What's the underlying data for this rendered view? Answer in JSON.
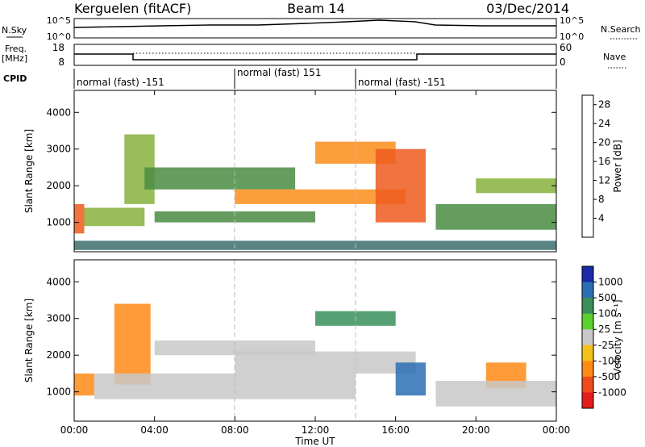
{
  "header": {
    "station": "Kerguelen (fitACF)",
    "beam": "Beam 14",
    "date": "03/Dec/2014"
  },
  "strips": {
    "nsky_label": "N.Sky",
    "nsky_ticks": [
      "10^5",
      "10^0"
    ],
    "nsearch_label": "N.Search",
    "nsearch_ticks": [
      "10^5",
      "10^0"
    ],
    "freq_label": "Freq.",
    "freq_unit": "[MHz]",
    "freq_ticks": [
      "18",
      "8"
    ],
    "nave_label": "Nave",
    "nave_ticks": [
      "60",
      "0"
    ],
    "cpid_label": "CPID",
    "cpid_segments": [
      {
        "label": "normal (fast) -151",
        "start_h": 0,
        "end_h": 8
      },
      {
        "label": "normal (fast) 151",
        "start_h": 8,
        "end_h": 14
      },
      {
        "label": "normal (fast) -151",
        "start_h": 14,
        "end_h": 24
      }
    ]
  },
  "colors": {
    "power_scale": [
      "#0000ff",
      "#2b46a6",
      "#3d6f6e",
      "#4a8c42",
      "#86b23c",
      "#f4c01b",
      "#fb8d1a",
      "#ef5a1e",
      "#e32525"
    ],
    "velocity_scale": [
      "#1b2aa8",
      "#2d6fb4",
      "#3a8f5a",
      "#5bd12d",
      "#c8c8c8",
      "#f2c21a",
      "#ff8a16",
      "#ef4b1c",
      "#e41c1c"
    ],
    "ground_scatter": "#c8c8c8"
  },
  "chart_data": [
    {
      "type": "heatmap",
      "panel": "power",
      "xlabel": "",
      "ylabel": "Slant Range [km]",
      "xlim": [
        0,
        24
      ],
      "ylim": [
        200,
        4600
      ],
      "yticks": [
        "1000",
        "2000",
        "3000",
        "4000"
      ],
      "colorbar_label": "Power [dB]",
      "colorbar_ticks": [
        "4",
        "8",
        "12",
        "16",
        "20",
        "24",
        "28"
      ],
      "colorbar_range": [
        0,
        30
      ],
      "bands": [
        {
          "start_h": 0.0,
          "end_h": 0.5,
          "range_lo_km": 700,
          "range_hi_km": 1500,
          "value": 26
        },
        {
          "start_h": 0.5,
          "end_h": 3.5,
          "range_lo_km": 900,
          "range_hi_km": 1400,
          "value": 14
        },
        {
          "start_h": 2.5,
          "end_h": 4.0,
          "range_lo_km": 1500,
          "range_hi_km": 3400,
          "value": 14
        },
        {
          "start_h": 4.0,
          "end_h": 12.0,
          "range_lo_km": 1000,
          "range_hi_km": 1300,
          "value": 12
        },
        {
          "start_h": 3.5,
          "end_h": 11.0,
          "range_lo_km": 1900,
          "range_hi_km": 2500,
          "value": 10
        },
        {
          "start_h": 8.0,
          "end_h": 16.5,
          "range_lo_km": 1500,
          "range_hi_km": 1900,
          "value": 22
        },
        {
          "start_h": 12.0,
          "end_h": 16.0,
          "range_lo_km": 2600,
          "range_hi_km": 3200,
          "value": 20
        },
        {
          "start_h": 15.0,
          "end_h": 17.5,
          "range_lo_km": 1000,
          "range_hi_km": 3000,
          "value": 24
        },
        {
          "start_h": 18.0,
          "end_h": 24.0,
          "range_lo_km": 800,
          "range_hi_km": 1500,
          "value": 12
        },
        {
          "start_h": 20.0,
          "end_h": 24.0,
          "range_lo_km": 1800,
          "range_hi_km": 2200,
          "value": 16
        },
        {
          "start_h": 0.0,
          "end_h": 24.0,
          "range_lo_km": 250,
          "range_hi_km": 500,
          "value": 8
        }
      ]
    },
    {
      "type": "heatmap",
      "panel": "velocity",
      "xlabel": "Time UT",
      "ylabel": "Slant Range [km]",
      "xlim": [
        0,
        24
      ],
      "ylim": [
        200,
        4600
      ],
      "yticks": [
        "1000",
        "2000",
        "3000",
        "4000"
      ],
      "xticks": [
        "00:00",
        "04:00",
        "08:00",
        "12:00",
        "16:00",
        "20:00",
        "00:00"
      ],
      "colorbar_label": "Velocity [m s⁻¹]",
      "colorbar_ticks": [
        "1000",
        "500",
        "100",
        "25",
        "-25",
        "-100",
        "-500",
        "-1000"
      ],
      "bands": [
        {
          "start_h": 0.0,
          "end_h": 1.0,
          "range_lo_km": 900,
          "range_hi_km": 1500,
          "value": -200
        },
        {
          "start_h": 2.0,
          "end_h": 3.8,
          "range_lo_km": 1200,
          "range_hi_km": 3400,
          "value": -300
        },
        {
          "start_h": 1.0,
          "end_h": 14.0,
          "range_lo_km": 800,
          "range_hi_km": 1500,
          "value": 0
        },
        {
          "start_h": 4.0,
          "end_h": 12.0,
          "range_lo_km": 2000,
          "range_hi_km": 2400,
          "value": 0
        },
        {
          "start_h": 8.0,
          "end_h": 17.0,
          "range_lo_km": 1500,
          "range_hi_km": 2100,
          "value": 0
        },
        {
          "start_h": 12.0,
          "end_h": 16.0,
          "range_lo_km": 2800,
          "range_hi_km": 3200,
          "value": 150
        },
        {
          "start_h": 16.0,
          "end_h": 17.5,
          "range_lo_km": 900,
          "range_hi_km": 1800,
          "value": 600
        },
        {
          "start_h": 20.5,
          "end_h": 22.5,
          "range_lo_km": 1100,
          "range_hi_km": 1800,
          "value": -300
        },
        {
          "start_h": 18.0,
          "end_h": 24.0,
          "range_lo_km": 600,
          "range_hi_km": 1300,
          "value": 0
        }
      ]
    }
  ]
}
